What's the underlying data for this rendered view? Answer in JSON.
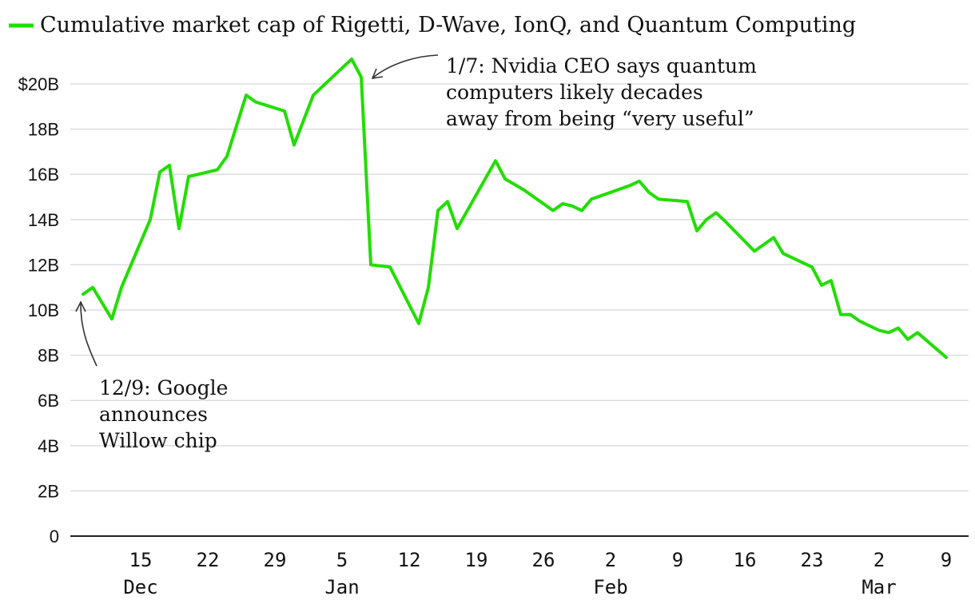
{
  "chart_data": {
    "type": "line",
    "legend": "Cumulative market cap of Rigetti, D-Wave, IonQ, and Quantum Computing",
    "series_color": "#22dd00",
    "ylim": [
      0,
      21
    ],
    "y_ticks": [
      {
        "value": 0,
        "label": "0"
      },
      {
        "value": 2,
        "label": "2B"
      },
      {
        "value": 4,
        "label": "4B"
      },
      {
        "value": 6,
        "label": "6B"
      },
      {
        "value": 8,
        "label": "8B"
      },
      {
        "value": 10,
        "label": "10B"
      },
      {
        "value": 12,
        "label": "12B"
      },
      {
        "value": 14,
        "label": "14B"
      },
      {
        "value": 16,
        "label": "16B"
      },
      {
        "value": 18,
        "label": "18B"
      },
      {
        "value": 20,
        "label": "$20B"
      }
    ],
    "x_ticks": [
      {
        "day": 6,
        "label": "15"
      },
      {
        "day": 13,
        "label": "22"
      },
      {
        "day": 20,
        "label": "29"
      },
      {
        "day": 27,
        "label": "5"
      },
      {
        "day": 34,
        "label": "12"
      },
      {
        "day": 41,
        "label": "19"
      },
      {
        "day": 48,
        "label": "26"
      },
      {
        "day": 55,
        "label": "2"
      },
      {
        "day": 62,
        "label": "9"
      },
      {
        "day": 69,
        "label": "16"
      },
      {
        "day": 76,
        "label": "23"
      },
      {
        "day": 83,
        "label": "2"
      },
      {
        "day": 90,
        "label": "9"
      }
    ],
    "months": [
      {
        "day": 6,
        "label": "Dec"
      },
      {
        "day": 27,
        "label": "Jan"
      },
      {
        "day": 55,
        "label": "Feb"
      },
      {
        "day": 83,
        "label": "Mar"
      }
    ],
    "points": [
      [
        0,
        10.7
      ],
      [
        1,
        11.0
      ],
      [
        3,
        9.6
      ],
      [
        4,
        11.0
      ],
      [
        7,
        14.0
      ],
      [
        8,
        16.1
      ],
      [
        9,
        16.4
      ],
      [
        10,
        13.6
      ],
      [
        11,
        15.9
      ],
      [
        14,
        16.2
      ],
      [
        15,
        16.8
      ],
      [
        17,
        19.5
      ],
      [
        18,
        19.2
      ],
      [
        21,
        18.8
      ],
      [
        22,
        17.3
      ],
      [
        24,
        19.5
      ],
      [
        25,
        19.9
      ],
      [
        28,
        21.1
      ],
      [
        29,
        20.3
      ],
      [
        30,
        12.0
      ],
      [
        32,
        11.9
      ],
      [
        35,
        9.4
      ],
      [
        36,
        11.0
      ],
      [
        37,
        14.4
      ],
      [
        38,
        14.8
      ],
      [
        39,
        13.6
      ],
      [
        43,
        16.6
      ],
      [
        44,
        15.8
      ],
      [
        46,
        15.3
      ],
      [
        49,
        14.4
      ],
      [
        50,
        14.7
      ],
      [
        51,
        14.6
      ],
      [
        52,
        14.4
      ],
      [
        53,
        14.9
      ],
      [
        57,
        15.5
      ],
      [
        58,
        15.7
      ],
      [
        59,
        15.2
      ],
      [
        60,
        14.9
      ],
      [
        63,
        14.8
      ],
      [
        64,
        13.5
      ],
      [
        65,
        14.0
      ],
      [
        66,
        14.3
      ],
      [
        67,
        13.9
      ],
      [
        70,
        12.6
      ],
      [
        71,
        12.9
      ],
      [
        72,
        13.2
      ],
      [
        73,
        12.5
      ],
      [
        76,
        11.9
      ],
      [
        77,
        11.1
      ],
      [
        78,
        11.3
      ],
      [
        79,
        9.8
      ],
      [
        80,
        9.8
      ],
      [
        81,
        9.5
      ],
      [
        83,
        9.1
      ],
      [
        84,
        9.0
      ],
      [
        85,
        9.2
      ],
      [
        86,
        8.7
      ],
      [
        87,
        9.0
      ],
      [
        90,
        7.9
      ]
    ],
    "annotations": [
      {
        "name": "google",
        "lines": [
          "12/9: Google",
          "announces",
          "Willow chip"
        ]
      },
      {
        "name": "nvidia",
        "lines": [
          "1/7: Nvidia CEO says quantum",
          "computers likely decades",
          "away from being “very useful”"
        ]
      }
    ]
  }
}
